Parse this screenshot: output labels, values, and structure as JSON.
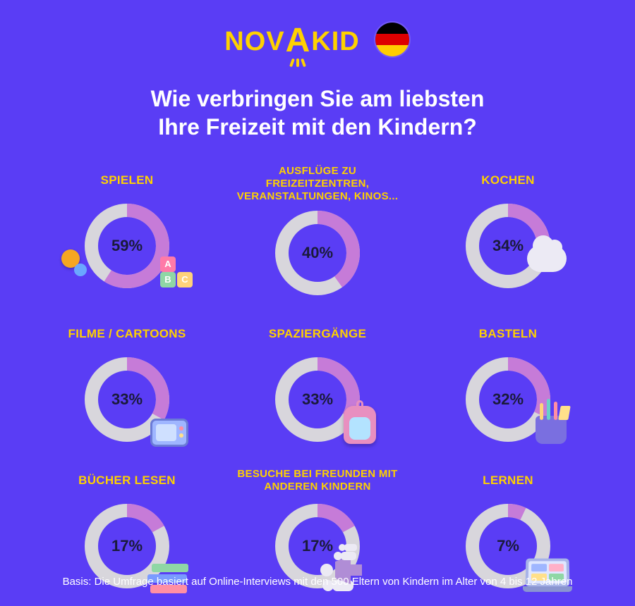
{
  "brand": {
    "name_left": "NOV",
    "name_right": "KID",
    "accent_letter": "A",
    "color": "#ffd100"
  },
  "flag": {
    "country": "germany",
    "stripes": [
      "#000000",
      "#dd0000",
      "#ffce00"
    ]
  },
  "title_line1": "Wie verbringen Sie am liebsten",
  "title_line2": "Ihre Freizeit mit den Kindern?",
  "colors": {
    "background": "#5a3df5",
    "label": "#ffd100",
    "title": "#ffffff",
    "donut_track": "#d8d6dc",
    "donut_fill": "#c67bd8",
    "pct_text": "#1a1a3a",
    "footer": "#ffffff"
  },
  "chart": {
    "type": "donut-grid",
    "donut_outer_r": 60,
    "donut_inner_r": 41,
    "grid_cols": 3,
    "items": [
      {
        "label": "SPIELEN",
        "value": 59,
        "icon": "toys-blocks"
      },
      {
        "label": "AUSFLÜGE ZU FREIZEITZENTREN, VERANSTALTUNGEN, KINOS...",
        "value": 40,
        "icon": "none",
        "label_fontsize": 15
      },
      {
        "label": "KOCHEN",
        "value": 34,
        "icon": "chef-hat"
      },
      {
        "label": "FILME / CARTOONS",
        "value": 33,
        "icon": "tv"
      },
      {
        "label": "SPAZIERGÄNGE",
        "value": 33,
        "icon": "backpack"
      },
      {
        "label": "BASTELN",
        "value": 32,
        "icon": "craft-cup"
      },
      {
        "label": "BÜCHER LESEN",
        "value": 17,
        "icon": "books"
      },
      {
        "label": "BESUCHE BEI FREUNDEN MIT ANDEREN KINDERN",
        "value": 17,
        "icon": "family",
        "label_fontsize": 15
      },
      {
        "label": "LERNEN",
        "value": 7,
        "icon": "laptop"
      }
    ]
  },
  "footer": "Basis: Die Umfrage basiert auf Online-Interviews mit den 500 Eltern von Kindern im Alter von 4 bis 12 Jahren",
  "label_fontsize_default": 17,
  "pct_fontsize": 22,
  "title_fontsize": 32
}
